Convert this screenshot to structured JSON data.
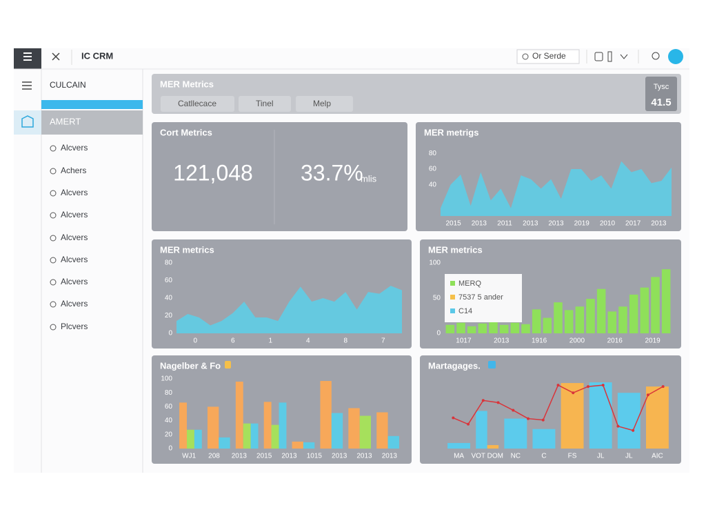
{
  "topbar": {
    "app_name": "IC CRM",
    "search": "Or Serde"
  },
  "sidebar": {
    "header": "CULCAIN",
    "selected": "AMERT",
    "items": [
      "Alcvers",
      "Achers",
      "Alcvers",
      "Alcvers",
      "Alcvers",
      "Alcvers",
      "Alcvers",
      "Alcvers",
      "Plcvers"
    ]
  },
  "header_panel": {
    "title": "MER Metrics",
    "filters": [
      "Catllecace",
      "Tinel",
      "Melp"
    ],
    "stat": {
      "label": "Tysc",
      "value": "41.5"
    }
  },
  "kpi_panel": {
    "title": "Cort Metrics",
    "value": "121,048",
    "rate": "33.7%",
    "rate_unit": "mlis"
  },
  "charts": [
    {
      "type": "area",
      "title": "MER metrigs",
      "color": "#62cbe3",
      "values": [
        10,
        40,
        53,
        13,
        56,
        20,
        35,
        10,
        52,
        47,
        35,
        47,
        22,
        60,
        60,
        45,
        52,
        35,
        70,
        56,
        60,
        42,
        45,
        62
      ],
      "xlabels": [
        "2015",
        "2013",
        "2011",
        "2013",
        "2013",
        "2019",
        "2010",
        "2017",
        "2013"
      ],
      "ylim": [
        0,
        90
      ],
      "yticks": [
        40,
        60,
        80
      ]
    },
    {
      "type": "area",
      "title": "MER metrics",
      "color": "#62cbe3",
      "values": [
        14,
        22,
        18,
        9,
        14,
        23,
        36,
        18,
        18,
        14,
        36,
        53,
        36,
        40,
        36,
        47,
        27,
        47,
        45,
        54,
        49
      ],
      "xlabels": [
        "0",
        "6",
        "1",
        "4",
        "8",
        "7"
      ],
      "ylim": [
        0,
        80
      ],
      "yticks": [
        0,
        20,
        40,
        60,
        80
      ]
    },
    {
      "type": "bar",
      "title": "MER metrics",
      "series": [
        {
          "color": "#8fe05a",
          "values": [
            12,
            15,
            10,
            14,
            16,
            12,
            15,
            13,
            34,
            22,
            44,
            33,
            38,
            49,
            63,
            31,
            38,
            55,
            65,
            80,
            91
          ]
        }
      ],
      "legend": [
        {
          "name": "MERQ",
          "color": "#8fe05a"
        },
        {
          "name": "7537 5 ander",
          "color": "#f5c04a"
        },
        {
          "name": "C14",
          "color": "#5bc8e8"
        }
      ],
      "xlabels": [
        "1017",
        "2013",
        "1916",
        "2000",
        "2016",
        "2019"
      ],
      "ylim": [
        0,
        100
      ],
      "yticks": [
        0,
        50,
        100
      ]
    },
    {
      "type": "bar",
      "title": "Nagelber & Fo",
      "series": [
        {
          "color": "#f7a85a",
          "values": [
            66,
            60,
            96,
            67,
            10,
            97,
            58,
            52
          ]
        },
        {
          "color": "#a6e05c",
          "values": [
            27,
            null,
            36,
            34,
            null,
            null,
            47,
            null
          ]
        },
        {
          "color": "#5ccbe6",
          "values": [
            27,
            16,
            36,
            66,
            9,
            51,
            null,
            18
          ]
        }
      ],
      "xlabels": [
        "WJ1",
        "208",
        "2013",
        "2015",
        "2013",
        "1015",
        "2013",
        "2013",
        "2013"
      ],
      "ylim": [
        0,
        100
      ],
      "yticks": [
        0,
        20,
        40,
        60,
        80,
        100
      ]
    },
    {
      "type": "bar",
      "title": "Martagages.",
      "series": [
        {
          "color": "#5ccbec",
          "values": [
            8,
            54,
            43,
            28,
            null,
            95,
            80,
            null
          ]
        },
        {
          "color": "#f7b550",
          "values": [
            null,
            5,
            null,
            null,
            94,
            null,
            null,
            89
          ]
        }
      ],
      "line": {
        "color": "#d9343a",
        "values": [
          44,
          35,
          69,
          66,
          55,
          43,
          41,
          91,
          80,
          89,
          91,
          32,
          26,
          77,
          89
        ]
      },
      "xlabels": [
        "MA",
        "VOT DOM",
        "NC",
        "C",
        "FS",
        "JL",
        "JL",
        "AIC"
      ],
      "ylim": [
        0,
        100
      ],
      "yticks": []
    }
  ]
}
